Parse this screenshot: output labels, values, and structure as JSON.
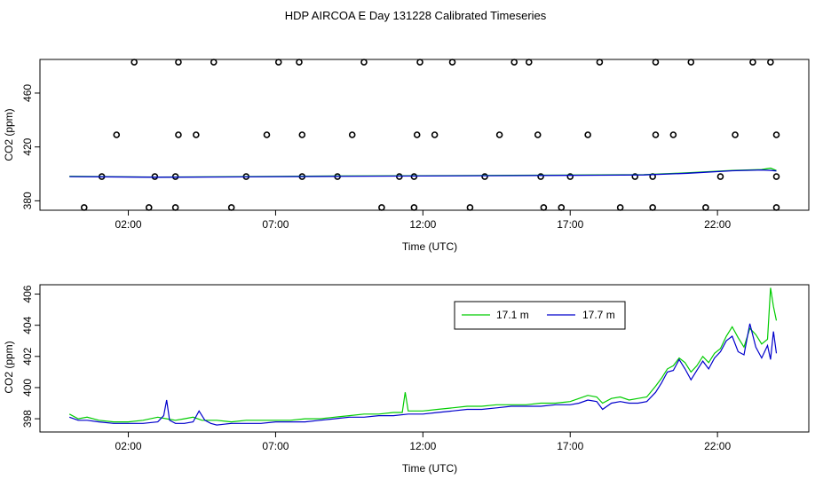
{
  "title": "HDP AIRCOA E  Day 131228  Calibrated Timeseries",
  "chart_data": [
    {
      "type": "scatter",
      "xlabel": "Time (UTC)",
      "ylabel": "CO2 (ppm)",
      "x_ticks": [
        {
          "t": 2,
          "label": "02:00"
        },
        {
          "t": 7,
          "label": "07:00"
        },
        {
          "t": 12,
          "label": "12:00"
        },
        {
          "t": 17,
          "label": "17:00"
        },
        {
          "t": 22,
          "label": "22:00"
        }
      ],
      "y_ticks": [
        {
          "v": 380,
          "label": "380"
        },
        {
          "t": 0,
          "v": 420,
          "label": "420"
        },
        {
          "v": 460,
          "label": "460"
        }
      ],
      "y_ticks_fix": [
        380,
        420,
        460
      ],
      "xlim": [
        -1.0,
        25.1
      ],
      "ylim": [
        373,
        485
      ],
      "grid": false,
      "calibration_points": {
        "level_values": [
          375,
          398,
          429,
          483
        ],
        "x_by_level": [
          [
            0.5,
            2.7,
            3.6,
            5.5,
            10.6,
            11.7,
            13.6,
            16.1,
            16.7,
            18.7,
            19.8,
            21.6,
            24.0
          ],
          [
            1.1,
            2.9,
            3.6,
            6.0,
            7.9,
            9.1,
            11.2,
            11.7,
            14.1,
            16.0,
            17.0,
            19.2,
            19.8,
            22.1,
            24.0
          ],
          [
            1.6,
            3.7,
            4.3,
            6.7,
            7.9,
            9.6,
            11.8,
            12.4,
            14.6,
            15.9,
            17.6,
            19.9,
            20.5,
            22.6,
            24.0
          ],
          [
            2.2,
            3.7,
            4.9,
            7.1,
            7.8,
            10.0,
            11.9,
            13.0,
            15.1,
            15.6,
            18.0,
            19.9,
            21.1,
            23.2,
            23.8
          ]
        ]
      },
      "series": [
        {
          "color": "#00cc00",
          "times": [
            0,
            3,
            6,
            9,
            12,
            15,
            18,
            19.5,
            21,
            22.5,
            23.5,
            23.8,
            24.0
          ],
          "values": [
            398.2,
            397.6,
            398.0,
            398.4,
            398.6,
            398.9,
            399.2,
            399.4,
            400.8,
            402.6,
            403.2,
            404.2,
            402.5
          ]
        },
        {
          "color": "#0000cc",
          "times": [
            0,
            3,
            6,
            9,
            12,
            15,
            18,
            19.5,
            21,
            22.5,
            23.5,
            23.8,
            24.0
          ],
          "values": [
            398.0,
            397.5,
            397.8,
            398.2,
            398.4,
            398.7,
            399.0,
            399.2,
            400.5,
            402.3,
            402.9,
            402.6,
            402.2
          ]
        }
      ]
    },
    {
      "type": "line",
      "xlabel": "Time (UTC)",
      "ylabel": "CO2 (ppm)",
      "x_ticks": [
        {
          "t": 2,
          "label": "02:00"
        },
        {
          "t": 7,
          "label": "07:00"
        },
        {
          "t": 12,
          "label": "12:00"
        },
        {
          "t": 17,
          "label": "17:00"
        },
        {
          "t": 22,
          "label": "22:00"
        }
      ],
      "y_ticks": [
        {
          "v": 398,
          "label": "398"
        },
        {
          "v": 400,
          "label": "400"
        },
        {
          "v": 402,
          "label": "402"
        },
        {
          "v": 404,
          "label": "404"
        },
        {
          "v": 406,
          "label": "406"
        }
      ],
      "xlim": [
        -1.0,
        25.1
      ],
      "ylim": [
        397.15,
        406.6
      ],
      "grid": false,
      "legend_position": "top-right",
      "series": [
        {
          "name": "17.1 m",
          "color": "#00cc00",
          "times": [
            0.0,
            0.3,
            0.6,
            1.0,
            1.5,
            2.0,
            2.5,
            3.0,
            3.3,
            3.6,
            3.9,
            4.2,
            4.5,
            5.0,
            5.5,
            6.0,
            6.5,
            7.0,
            7.5,
            8.0,
            8.5,
            9.0,
            9.5,
            10.0,
            10.5,
            11.0,
            11.3,
            11.4,
            11.5,
            11.7,
            12.0,
            12.5,
            13.0,
            13.5,
            14.0,
            14.5,
            15.0,
            15.5,
            16.0,
            16.5,
            17.0,
            17.3,
            17.6,
            17.9,
            18.1,
            18.4,
            18.7,
            19.0,
            19.3,
            19.6,
            19.9,
            20.1,
            20.3,
            20.5,
            20.7,
            20.9,
            21.1,
            21.3,
            21.5,
            21.7,
            21.9,
            22.1,
            22.3,
            22.5,
            22.7,
            22.9,
            23.1,
            23.3,
            23.5,
            23.7,
            23.8,
            23.9,
            24.0
          ],
          "values": [
            398.3,
            398.0,
            398.1,
            397.9,
            397.8,
            397.8,
            397.9,
            398.1,
            398.0,
            397.9,
            398.0,
            398.1,
            397.9,
            397.9,
            397.8,
            397.9,
            397.9,
            397.9,
            397.9,
            398.0,
            398.0,
            398.1,
            398.2,
            398.3,
            398.3,
            398.4,
            398.4,
            399.7,
            398.5,
            398.5,
            398.5,
            398.6,
            398.7,
            398.8,
            398.8,
            398.9,
            398.9,
            398.9,
            399.0,
            399.0,
            399.1,
            399.3,
            399.5,
            399.4,
            399.0,
            399.3,
            399.4,
            399.2,
            399.3,
            399.4,
            400.1,
            400.6,
            401.2,
            401.4,
            401.9,
            401.6,
            401.0,
            401.4,
            402.0,
            401.6,
            402.2,
            402.5,
            403.3,
            403.9,
            403.2,
            402.6,
            403.8,
            403.4,
            402.8,
            403.1,
            406.4,
            405.2,
            404.3
          ]
        },
        {
          "name": "17.7 m",
          "color": "#0000cc",
          "times": [
            0.0,
            0.3,
            0.6,
            1.0,
            1.5,
            2.0,
            2.5,
            3.0,
            3.2,
            3.3,
            3.4,
            3.6,
            3.9,
            4.2,
            4.4,
            4.6,
            4.8,
            5.0,
            5.5,
            6.0,
            6.5,
            7.0,
            7.5,
            8.0,
            8.5,
            9.0,
            9.5,
            10.0,
            10.5,
            11.0,
            11.5,
            12.0,
            12.5,
            13.0,
            13.5,
            14.0,
            14.5,
            15.0,
            15.5,
            16.0,
            16.5,
            17.0,
            17.3,
            17.6,
            17.9,
            18.1,
            18.4,
            18.7,
            19.0,
            19.3,
            19.6,
            19.9,
            20.1,
            20.3,
            20.5,
            20.7,
            20.9,
            21.1,
            21.3,
            21.5,
            21.7,
            21.9,
            22.1,
            22.3,
            22.5,
            22.7,
            22.9,
            23.1,
            23.3,
            23.5,
            23.7,
            23.8,
            23.9,
            24.0
          ],
          "values": [
            398.1,
            397.9,
            397.9,
            397.8,
            397.7,
            397.7,
            397.7,
            397.8,
            398.2,
            399.2,
            397.9,
            397.7,
            397.7,
            397.8,
            398.5,
            397.9,
            397.7,
            397.6,
            397.7,
            397.7,
            397.7,
            397.8,
            397.8,
            397.8,
            397.9,
            398.0,
            398.1,
            398.1,
            398.2,
            398.2,
            398.3,
            398.3,
            398.4,
            398.5,
            398.6,
            398.6,
            398.7,
            398.8,
            398.8,
            398.8,
            398.9,
            398.9,
            399.0,
            399.2,
            399.1,
            398.6,
            399.0,
            399.1,
            399.0,
            399.0,
            399.1,
            399.7,
            400.3,
            401.0,
            401.1,
            401.8,
            401.2,
            400.5,
            401.1,
            401.7,
            401.2,
            401.9,
            402.3,
            403.0,
            403.3,
            402.3,
            402.1,
            404.1,
            402.6,
            401.9,
            402.7,
            401.8,
            403.6,
            402.2
          ]
        }
      ]
    }
  ]
}
